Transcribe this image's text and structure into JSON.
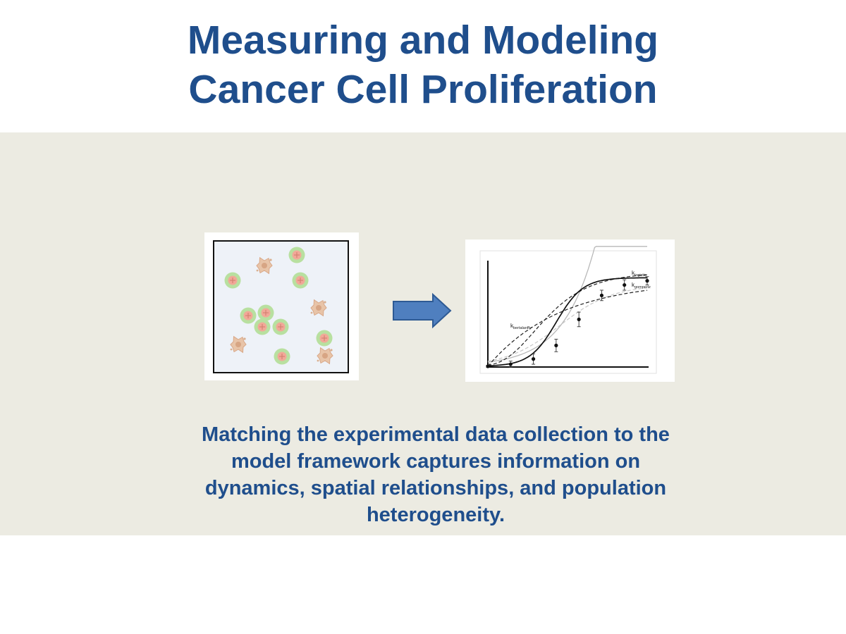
{
  "slide": {
    "title_line1": "Measuring and Modeling",
    "title_line2": "Cancer Cell Proliferation",
    "caption_line1": "Matching the experimental data collection to the",
    "caption_line2": "model framework captures information on",
    "caption_line3": "dynamics, spatial relationships, and population",
    "caption_line4": "heterogeneity."
  },
  "colors": {
    "title": "#1f4e8c",
    "band": "#ecebe2",
    "arrow_fill": "#4f7fbf",
    "arrow_stroke": "#2e5a94",
    "live_cell_outer": "#b8e0a0",
    "live_cell_inner": "#f1a898",
    "dead_cell": "#e8c4a8"
  },
  "cells": {
    "live": [
      [
        421,
        362
      ],
      [
        330,
        398
      ],
      [
        426,
        398
      ],
      [
        352,
        448
      ],
      [
        377,
        444
      ],
      [
        372,
        464
      ],
      [
        398,
        464
      ],
      [
        460,
        480
      ],
      [
        400,
        506
      ]
    ],
    "dead": [
      [
        375,
        377
      ],
      [
        452,
        437
      ],
      [
        338,
        489
      ],
      [
        461,
        505
      ]
    ]
  },
  "chart_data": {
    "type": "line",
    "title": "",
    "xlabel": "",
    "ylabel": "",
    "series": [
      {
        "name": "k_logistic",
        "label_main": "k",
        "label_sub": "logistic",
        "style": "solid-black"
      },
      {
        "name": "k_gompertz",
        "label_main": "k",
        "label_sub": "gompertz",
        "style": "dashed-black"
      },
      {
        "name": "k_bertalanffy",
        "label_main": "k",
        "label_sub": "bertalanffy",
        "style": "dashed-black"
      },
      {
        "name": "",
        "style": "solid-gray"
      },
      {
        "name": "",
        "style": "dashed-gray"
      }
    ],
    "data_points": {
      "x": [
        0,
        1,
        2,
        3,
        4,
        5,
        6,
        7
      ],
      "y": [
        0.0,
        0.02,
        0.07,
        0.2,
        0.45,
        0.68,
        0.78,
        0.82
      ],
      "err": [
        0.01,
        0.03,
        0.05,
        0.06,
        0.07,
        0.05,
        0.05,
        0.04
      ]
    },
    "axes": {
      "x_ticks": false,
      "y_ticks": false
    }
  }
}
